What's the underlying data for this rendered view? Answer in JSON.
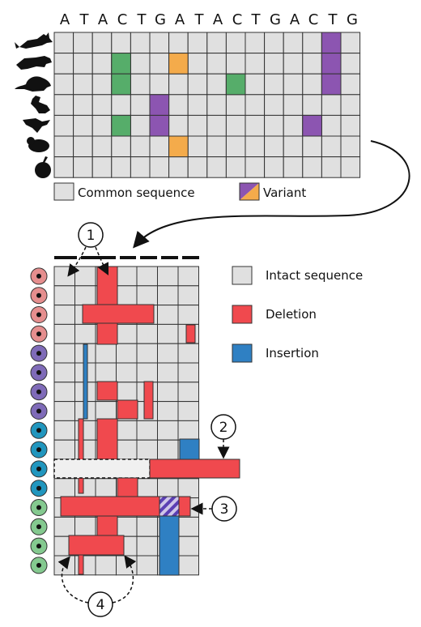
{
  "sequence": [
    "A",
    "T",
    "A",
    "C",
    "T",
    "G",
    "A",
    "T",
    "A",
    "C",
    "T",
    "G",
    "A",
    "C",
    "T",
    "G"
  ],
  "top_grid": {
    "species_icons": [
      "fox-icon",
      "ferret-icon",
      "rat-icon",
      "bird-icon",
      "hummingbird-icon",
      "hamster-icon",
      "apple-icon"
    ],
    "cells": [
      {
        "row": 0,
        "col": 14,
        "type": "variant-purple"
      },
      {
        "row": 1,
        "col": 3,
        "type": "variant-green"
      },
      {
        "row": 1,
        "col": 6,
        "type": "variant-orange"
      },
      {
        "row": 1,
        "col": 14,
        "type": "variant-purple"
      },
      {
        "row": 2,
        "col": 3,
        "type": "variant-green"
      },
      {
        "row": 2,
        "col": 9,
        "type": "variant-green"
      },
      {
        "row": 2,
        "col": 14,
        "type": "variant-purple"
      },
      {
        "row": 3,
        "col": 5,
        "type": "variant-purple"
      },
      {
        "row": 4,
        "col": 3,
        "type": "variant-green"
      },
      {
        "row": 4,
        "col": 5,
        "type": "variant-purple"
      },
      {
        "row": 4,
        "col": 13,
        "type": "variant-purple"
      },
      {
        "row": 5,
        "col": 6,
        "type": "variant-orange"
      }
    ]
  },
  "legend_top": {
    "common": "Common sequence",
    "variant": "Variant"
  },
  "legend_bottom": {
    "intact": "Intact sequence",
    "deletion": "Deletion",
    "insertion": "Insertion"
  },
  "cell_colors": [
    "#e58e8e",
    "#e58e8e",
    "#e58e8e",
    "#e58e8e",
    "#7f6bb8",
    "#7f6bb8",
    "#7f6bb8",
    "#7f6bb8",
    "#2196be",
    "#2196be",
    "#2196be",
    "#2196be",
    "#84c98f",
    "#84c98f",
    "#84c98f",
    "#84c98f"
  ],
  "callouts": [
    "1",
    "2",
    "3",
    "4"
  ],
  "colors": {
    "grid_fill": "#e0e0e0",
    "grid_line": "#333333",
    "deletion": "#f0494e",
    "insertion": "#2f80c3",
    "green": "#56ad6a",
    "orange": "#f4ab4b",
    "purple": "#8c55b1"
  }
}
